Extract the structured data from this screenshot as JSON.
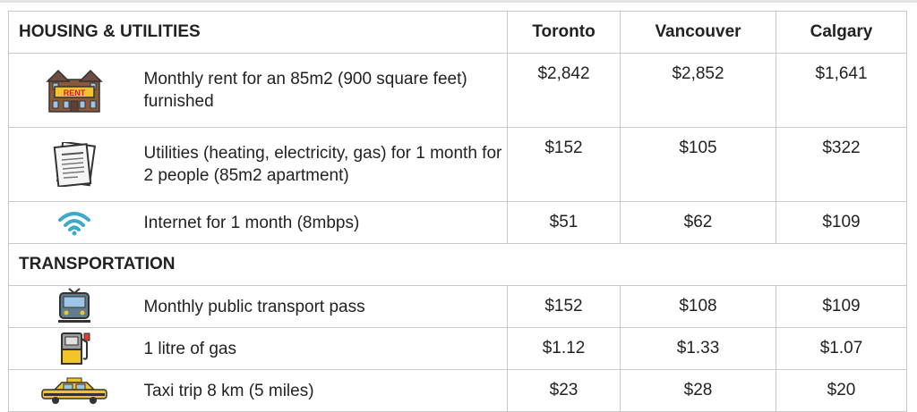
{
  "header": {
    "section_housing": "HOUSING & UTILITIES",
    "cities": [
      "Toronto",
      "Vancouver",
      "Calgary"
    ]
  },
  "housing": [
    {
      "icon": "rent-building-icon",
      "label": "Monthly rent for an 85m2 (900 square feet) furnished",
      "values": [
        "$2,842",
        "$2,852",
        "$1,641"
      ],
      "sign_text": "RENT"
    },
    {
      "icon": "utility-bill-icon",
      "label": "Utilities (heating, electricity, gas) for 1 month for 2 people (85m2 apartment)",
      "values": [
        "$152",
        "$105",
        "$322"
      ]
    },
    {
      "icon": "wifi-icon",
      "label": "Internet for 1 month (8mbps)",
      "values": [
        "$51",
        "$62",
        "$109"
      ]
    }
  ],
  "section_transportation": "TRANSPORTATION",
  "transportation": [
    {
      "icon": "tram-icon",
      "label": "Monthly public transport pass",
      "values": [
        "$152",
        "$108",
        "$109"
      ]
    },
    {
      "icon": "gas-pump-icon",
      "label": "1 litre of gas",
      "values": [
        "$1.12",
        "$1.33",
        "$1.07"
      ]
    },
    {
      "icon": "taxi-icon",
      "label": "Taxi trip 8 km (5 miles)",
      "values": [
        "$23",
        "$28",
        "$20"
      ]
    }
  ],
  "colors": {
    "border": "#c9c9c9",
    "text": "#222222",
    "wifi": "#3fa9c9",
    "taxi": "#f2c230"
  }
}
